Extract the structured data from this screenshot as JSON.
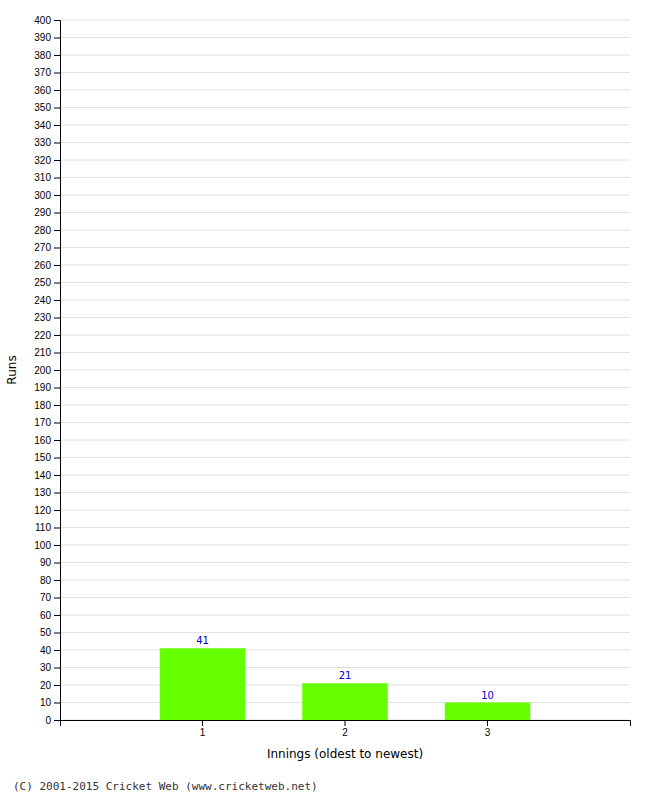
{
  "chart_data": {
    "type": "bar",
    "categories": [
      "1",
      "2",
      "3"
    ],
    "values": [
      41,
      21,
      10
    ],
    "color": "#66ff00",
    "xlabel": "Innings (oldest to newest)",
    "ylabel": "Runs",
    "ylim": [
      0,
      400
    ],
    "yticks": [
      0,
      10,
      20,
      30,
      40,
      50,
      60,
      70,
      80,
      90,
      100,
      110,
      120,
      130,
      140,
      150,
      160,
      170,
      180,
      190,
      200,
      210,
      220,
      230,
      240,
      250,
      260,
      270,
      280,
      290,
      300,
      310,
      320,
      330,
      340,
      350,
      360,
      370,
      380,
      390,
      400
    ],
    "grid": true,
    "data_labels": true,
    "annotations": [
      "(C) 2001-2015 Cricket Web (www.cricketweb.net)"
    ]
  }
}
